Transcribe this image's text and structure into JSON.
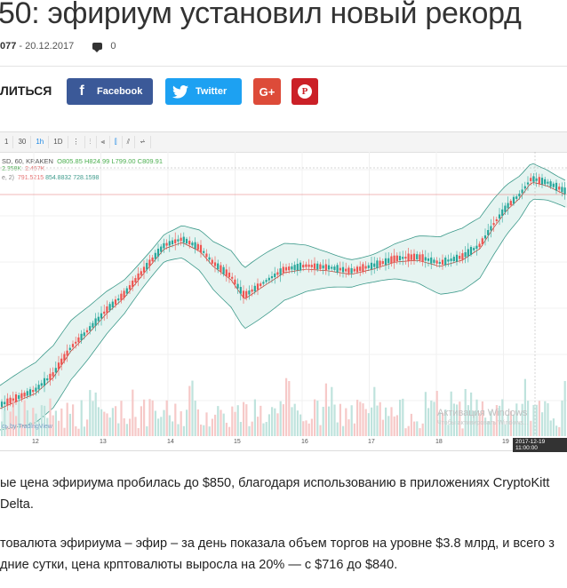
{
  "article": {
    "title": "50: эфириум установил новый рекорд",
    "author": "077",
    "sep": "-",
    "date": "20.12.2017",
    "comments": "0"
  },
  "share": {
    "label": "ЛИТЬСЯ",
    "facebook": "Facebook",
    "twitter": "Twitter",
    "google_plus": "G+",
    "pinterest": "P"
  },
  "chart": {
    "toolbar": [
      "1",
      "30",
      "1h",
      "1D",
      "⋮",
      "⫶",
      "⫷",
      "⫿",
      "⫽",
      "⩫"
    ],
    "legend_main_prefix": "SD, 60, KRAKEN",
    "legend_o": "O805.85",
    "legend_h": "H824.99",
    "legend_l": "L799.00",
    "legend_c": "C809.91",
    "legend_vol": "2.358K",
    "legend_vol2": "2.467K",
    "legend_bb_label": "е, 2)",
    "legend_bb1": "791.5215",
    "legend_bb2": "854.8832",
    "legend_bb3": "728.1598",
    "tv_credit": "сь by TradingView",
    "watermark_title": "Активация Windows",
    "watermark_sub": "Чтобы активировать Windows...",
    "x_labels": [
      "12",
      "13",
      "14",
      "15",
      "16",
      "17",
      "18",
      "19"
    ],
    "timestamp": "2017-12-19 11:00:00"
  },
  "chart_data": {
    "type": "candlestick",
    "x": [
      "12",
      "13",
      "14",
      "15",
      "16",
      "17",
      "18",
      "19"
    ],
    "close": [
      640,
      700,
      800,
      740,
      760,
      765,
      770,
      810
    ],
    "legend": "none"
  },
  "body": {
    "p1_line1": "ые цена эфириума пробилась до $850, благодаря использованию в приложениях CryptoKitt",
    "p1_line2": "Delta.",
    "p2_line1": "товалюта эфириума – эфир – за день показала объем торгов на уровне $3.8 млрд, и всего з",
    "p2_line2": "дние сутки, цена крптовалюты выросла на 20% — с $716 до $840."
  }
}
